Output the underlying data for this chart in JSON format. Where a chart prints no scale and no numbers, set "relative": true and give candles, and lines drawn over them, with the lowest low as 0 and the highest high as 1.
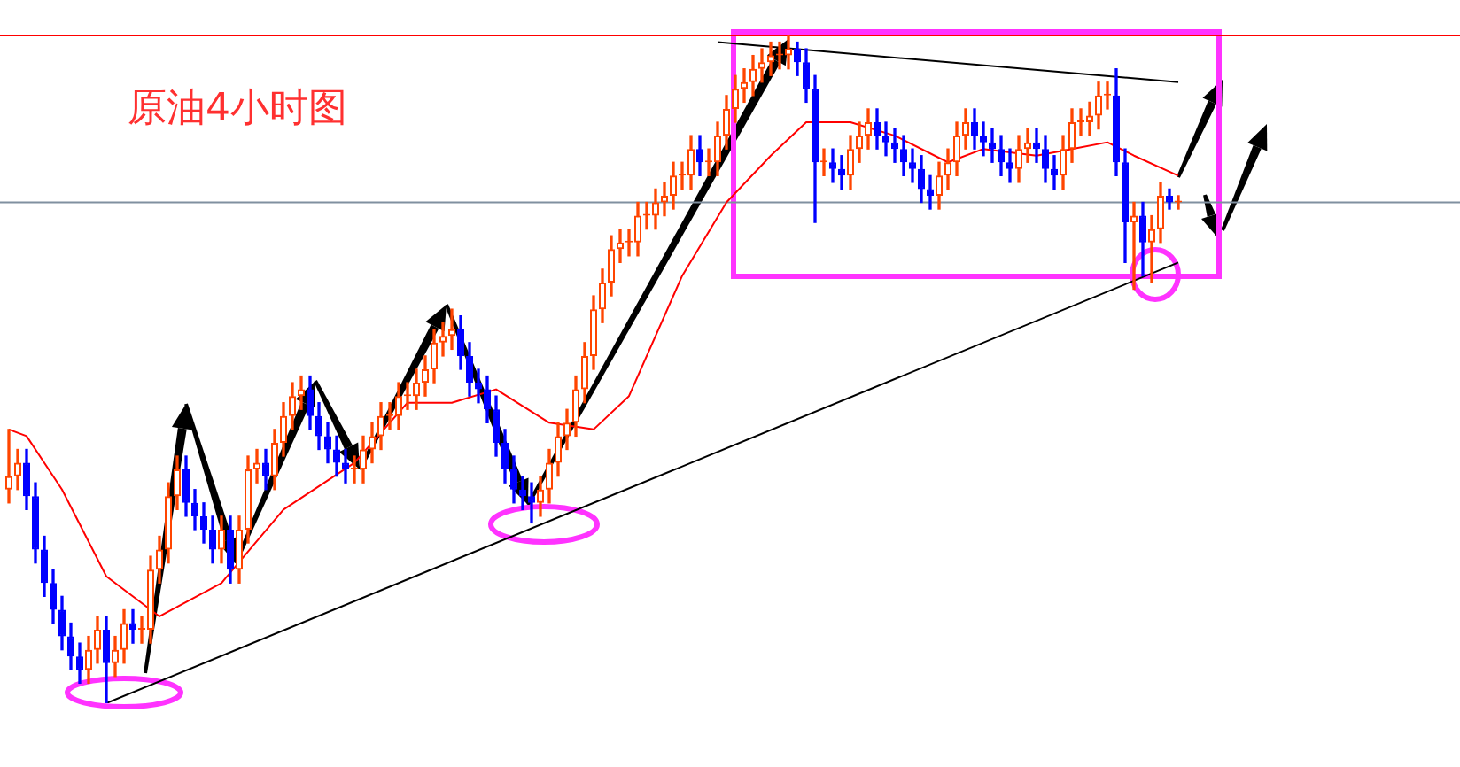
{
  "chart_data": {
    "type": "candlestick",
    "title": "原油4小时图",
    "relative": true,
    "legend": false,
    "categories": [
      null,
      null,
      null,
      null,
      null,
      null,
      null,
      null,
      null,
      null,
      null,
      null,
      null,
      null,
      null,
      null,
      null,
      null,
      null,
      null,
      null,
      null,
      null,
      null,
      null,
      null,
      null,
      null,
      null,
      null,
      null,
      null,
      null,
      null,
      null,
      null,
      null,
      null,
      null,
      null,
      null,
      null,
      null,
      null,
      null,
      null,
      null,
      null,
      null,
      null,
      null,
      null,
      null,
      null,
      null,
      null,
      null,
      null,
      null,
      null,
      null,
      null,
      null,
      null,
      null,
      null,
      null,
      null,
      null,
      null,
      null,
      null,
      null,
      null,
      null,
      null,
      null,
      null,
      null,
      null,
      null,
      null,
      null,
      null,
      null,
      null,
      null,
      null,
      null,
      null,
      null,
      null,
      null,
      null,
      null,
      null,
      null,
      null,
      null,
      null,
      null,
      null,
      null,
      null,
      null,
      null,
      null,
      null,
      null,
      null,
      null,
      null,
      null,
      null,
      null,
      null,
      null,
      null,
      null,
      null,
      null,
      null,
      null,
      null,
      null,
      null,
      null,
      null,
      null,
      null,
      null,
      null,
      null
    ],
    "ohlc": [
      [
        0.32,
        0.41,
        0.3,
        0.34
      ],
      [
        0.34,
        0.38,
        0.32,
        0.36
      ],
      [
        0.36,
        0.38,
        0.29,
        0.31
      ],
      [
        0.31,
        0.33,
        0.21,
        0.23
      ],
      [
        0.23,
        0.25,
        0.16,
        0.18
      ],
      [
        0.18,
        0.2,
        0.12,
        0.14
      ],
      [
        0.14,
        0.16,
        0.08,
        0.1
      ],
      [
        0.1,
        0.12,
        0.05,
        0.07
      ],
      [
        0.07,
        0.09,
        0.03,
        0.05
      ],
      [
        0.05,
        0.1,
        0.03,
        0.08
      ],
      [
        0.08,
        0.13,
        0.06,
        0.11
      ],
      [
        0.11,
        0.13,
        0.0,
        0.06
      ],
      [
        0.06,
        0.1,
        0.04,
        0.08
      ],
      [
        0.08,
        0.14,
        0.06,
        0.12
      ],
      [
        0.12,
        0.14,
        0.09,
        0.11
      ],
      [
        0.11,
        0.13,
        0.09,
        0.11
      ],
      [
        0.11,
        0.22,
        0.09,
        0.2
      ],
      [
        0.2,
        0.25,
        0.18,
        0.23
      ],
      [
        0.23,
        0.33,
        0.21,
        0.31
      ],
      [
        0.31,
        0.37,
        0.29,
        0.35
      ],
      [
        0.35,
        0.37,
        0.28,
        0.3
      ],
      [
        0.3,
        0.32,
        0.26,
        0.28
      ],
      [
        0.28,
        0.3,
        0.24,
        0.26
      ],
      [
        0.26,
        0.28,
        0.21,
        0.23
      ],
      [
        0.23,
        0.28,
        0.21,
        0.26
      ],
      [
        0.26,
        0.28,
        0.18,
        0.2
      ],
      [
        0.2,
        0.28,
        0.18,
        0.26
      ],
      [
        0.26,
        0.37,
        0.24,
        0.35
      ],
      [
        0.35,
        0.38,
        0.33,
        0.36
      ],
      [
        0.36,
        0.38,
        0.32,
        0.34
      ],
      [
        0.34,
        0.41,
        0.32,
        0.39
      ],
      [
        0.39,
        0.45,
        0.37,
        0.43
      ],
      [
        0.43,
        0.48,
        0.41,
        0.46
      ],
      [
        0.46,
        0.49,
        0.44,
        0.47
      ],
      [
        0.47,
        0.49,
        0.41,
        0.43
      ],
      [
        0.43,
        0.45,
        0.38,
        0.4
      ],
      [
        0.4,
        0.42,
        0.36,
        0.38
      ],
      [
        0.38,
        0.4,
        0.34,
        0.36
      ],
      [
        0.36,
        0.38,
        0.33,
        0.35
      ],
      [
        0.35,
        0.37,
        0.33,
        0.35
      ],
      [
        0.35,
        0.4,
        0.33,
        0.38
      ],
      [
        0.38,
        0.42,
        0.36,
        0.4
      ],
      [
        0.4,
        0.45,
        0.38,
        0.43
      ],
      [
        0.43,
        0.45,
        0.41,
        0.43
      ],
      [
        0.43,
        0.48,
        0.41,
        0.46
      ],
      [
        0.46,
        0.48,
        0.44,
        0.46
      ],
      [
        0.46,
        0.5,
        0.44,
        0.48
      ],
      [
        0.48,
        0.52,
        0.46,
        0.5
      ],
      [
        0.5,
        0.56,
        0.48,
        0.54
      ],
      [
        0.54,
        0.57,
        0.52,
        0.55
      ],
      [
        0.55,
        0.59,
        0.53,
        0.56
      ],
      [
        0.56,
        0.58,
        0.5,
        0.52
      ],
      [
        0.52,
        0.54,
        0.46,
        0.48
      ],
      [
        0.48,
        0.5,
        0.45,
        0.47
      ],
      [
        0.47,
        0.49,
        0.42,
        0.44
      ],
      [
        0.44,
        0.46,
        0.37,
        0.39
      ],
      [
        0.39,
        0.41,
        0.33,
        0.35
      ],
      [
        0.35,
        0.37,
        0.3,
        0.32
      ],
      [
        0.32,
        0.34,
        0.29,
        0.31
      ],
      [
        0.31,
        0.33,
        0.27,
        0.3
      ],
      [
        0.3,
        0.34,
        0.28,
        0.32
      ],
      [
        0.32,
        0.38,
        0.3,
        0.36
      ],
      [
        0.36,
        0.42,
        0.34,
        0.4
      ],
      [
        0.4,
        0.44,
        0.38,
        0.42
      ],
      [
        0.42,
        0.49,
        0.4,
        0.47
      ],
      [
        0.47,
        0.54,
        0.45,
        0.52
      ],
      [
        0.52,
        0.61,
        0.5,
        0.59
      ],
      [
        0.59,
        0.65,
        0.57,
        0.63
      ],
      [
        0.63,
        0.7,
        0.61,
        0.68
      ],
      [
        0.68,
        0.71,
        0.66,
        0.69
      ],
      [
        0.69,
        0.71,
        0.67,
        0.69
      ],
      [
        0.69,
        0.75,
        0.67,
        0.73
      ],
      [
        0.73,
        0.75,
        0.71,
        0.73
      ],
      [
        0.73,
        0.77,
        0.71,
        0.75
      ],
      [
        0.75,
        0.78,
        0.73,
        0.76
      ],
      [
        0.76,
        0.81,
        0.74,
        0.79
      ],
      [
        0.79,
        0.81,
        0.77,
        0.79
      ],
      [
        0.79,
        0.85,
        0.77,
        0.83
      ],
      [
        0.83,
        0.85,
        0.79,
        0.81
      ],
      [
        0.81,
        0.83,
        0.79,
        0.81
      ],
      [
        0.81,
        0.87,
        0.79,
        0.85
      ],
      [
        0.85,
        0.91,
        0.83,
        0.89
      ],
      [
        0.89,
        0.94,
        0.87,
        0.92
      ],
      [
        0.92,
        0.95,
        0.9,
        0.93
      ],
      [
        0.93,
        0.97,
        0.91,
        0.95
      ],
      [
        0.95,
        0.98,
        0.93,
        0.96
      ],
      [
        0.96,
        0.99,
        0.94,
        0.97
      ],
      [
        0.97,
        0.99,
        0.95,
        0.97
      ],
      [
        0.97,
        1.0,
        0.95,
        0.98
      ],
      [
        0.98,
        0.99,
        0.94,
        0.96
      ],
      [
        0.96,
        0.98,
        0.9,
        0.92
      ],
      [
        0.92,
        0.94,
        0.72,
        0.81
      ],
      [
        0.81,
        0.83,
        0.79,
        0.81
      ],
      [
        0.81,
        0.83,
        0.78,
        0.8
      ],
      [
        0.8,
        0.82,
        0.77,
        0.79
      ],
      [
        0.79,
        0.85,
        0.77,
        0.83
      ],
      [
        0.83,
        0.87,
        0.81,
        0.85
      ],
      [
        0.85,
        0.89,
        0.83,
        0.87
      ],
      [
        0.87,
        0.89,
        0.83,
        0.85
      ],
      [
        0.85,
        0.87,
        0.82,
        0.84
      ],
      [
        0.84,
        0.86,
        0.81,
        0.83
      ],
      [
        0.83,
        0.85,
        0.79,
        0.81
      ],
      [
        0.81,
        0.83,
        0.78,
        0.8
      ],
      [
        0.8,
        0.82,
        0.75,
        0.77
      ],
      [
        0.77,
        0.79,
        0.74,
        0.76
      ],
      [
        0.76,
        0.81,
        0.74,
        0.79
      ],
      [
        0.79,
        0.83,
        0.77,
        0.81
      ],
      [
        0.81,
        0.87,
        0.79,
        0.85
      ],
      [
        0.85,
        0.89,
        0.83,
        0.87
      ],
      [
        0.87,
        0.89,
        0.83,
        0.85
      ],
      [
        0.85,
        0.87,
        0.82,
        0.84
      ],
      [
        0.84,
        0.86,
        0.81,
        0.83
      ],
      [
        0.83,
        0.85,
        0.79,
        0.81
      ],
      [
        0.81,
        0.83,
        0.78,
        0.8
      ],
      [
        0.8,
        0.85,
        0.78,
        0.83
      ],
      [
        0.83,
        0.86,
        0.81,
        0.84
      ],
      [
        0.84,
        0.86,
        0.81,
        0.83
      ],
      [
        0.83,
        0.85,
        0.78,
        0.8
      ],
      [
        0.8,
        0.82,
        0.77,
        0.79
      ],
      [
        0.79,
        0.85,
        0.77,
        0.83
      ],
      [
        0.83,
        0.89,
        0.81,
        0.87
      ],
      [
        0.87,
        0.89,
        0.85,
        0.87
      ],
      [
        0.87,
        0.9,
        0.85,
        0.88
      ],
      [
        0.88,
        0.93,
        0.86,
        0.91
      ],
      [
        0.91,
        0.93,
        0.89,
        0.91
      ],
      [
        0.91,
        0.95,
        0.79,
        0.81
      ],
      [
        0.81,
        0.83,
        0.66,
        0.72
      ],
      [
        0.72,
        0.75,
        0.62,
        0.73
      ],
      [
        0.73,
        0.75,
        0.64,
        0.69
      ],
      [
        0.69,
        0.73,
        0.63,
        0.71
      ],
      [
        0.71,
        0.78,
        0.69,
        0.76
      ],
      [
        0.76,
        0.77,
        0.74,
        0.75
      ],
      [
        0.75,
        0.76,
        0.74,
        0.75
      ]
    ],
    "series": [
      {
        "type": "line",
        "color": "#ff0000",
        "values": [
          0.41,
          null,
          0.4,
          null,
          null,
          null,
          0.32,
          null,
          null,
          null,
          null,
          0.19,
          null,
          null,
          null,
          null,
          null,
          0.13,
          null,
          null,
          null,
          null,
          null,
          null,
          0.18,
          null,
          null,
          null,
          null,
          null,
          null,
          0.29,
          null,
          null,
          null,
          null,
          null,
          null,
          null,
          0.36,
          null,
          null,
          null,
          null,
          null,
          0.45,
          null,
          null,
          null,
          null,
          0.45,
          null,
          null,
          null,
          null,
          0.47,
          null,
          null,
          null,
          null,
          null,
          0.42,
          null,
          null,
          null,
          null,
          0.41,
          null,
          null,
          null,
          0.46,
          null,
          null,
          null,
          null,
          null,
          0.64,
          null,
          null,
          null,
          null,
          0.75,
          null,
          null,
          null,
          null,
          0.82,
          null,
          null,
          null,
          0.87,
          null,
          null,
          null,
          null,
          0.87,
          null,
          null,
          null,
          null,
          0.85,
          null,
          null,
          null,
          null,
          null,
          0.81,
          null,
          null,
          null,
          0.83,
          null,
          null,
          null,
          null,
          null,
          0.82,
          null,
          null,
          null,
          0.83,
          null,
          null,
          null,
          0.84,
          null,
          null,
          0.82,
          null,
          null,
          null,
          null,
          0.79
        ]
      },
      {
        "type": "line",
        "color": "#000000",
        "values": [
          null,
          null,
          null,
          null,
          null,
          null,
          null,
          null,
          null,
          null,
          null,
          0.0,
          null,
          null,
          null,
          null,
          null,
          null,
          null,
          null,
          null,
          null,
          null,
          null,
          null,
          null,
          null,
          null,
          null,
          null,
          null,
          null,
          null,
          null,
          null,
          null,
          null,
          null,
          null,
          null,
          null,
          null,
          null,
          null,
          null,
          null,
          null,
          null,
          null,
          null,
          null,
          null,
          null,
          null,
          null,
          null,
          null,
          null,
          null,
          null,
          null,
          null,
          null,
          null,
          null,
          null,
          null,
          null,
          null,
          null,
          null,
          null,
          null,
          null,
          null,
          null,
          null,
          null,
          null,
          null,
          null,
          null,
          null,
          null,
          null,
          null,
          null,
          null,
          null,
          null,
          null,
          null,
          null,
          null,
          null,
          null,
          null,
          null,
          null,
          null,
          null,
          null,
          null,
          null,
          null,
          null,
          null,
          null,
          null,
          null,
          null,
          null,
          null,
          null,
          null,
          null,
          null,
          null,
          null,
          null,
          null,
          null,
          null,
          null,
          null,
          null,
          null,
          null,
          null,
          null,
          null,
          null,
          0.66
        ]
      },
      {
        "type": "line",
        "color": "#000000",
        "values": [
          null,
          null,
          null,
          null,
          null,
          null,
          null,
          null,
          null,
          null,
          null,
          null,
          null,
          null,
          null,
          null,
          null,
          null,
          null,
          null,
          null,
          null,
          null,
          null,
          null,
          null,
          null,
          null,
          null,
          null,
          null,
          null,
          null,
          null,
          null,
          null,
          null,
          null,
          null,
          null,
          null,
          null,
          null,
          null,
          null,
          null,
          null,
          null,
          null,
          null,
          null,
          null,
          null,
          null,
          null,
          null,
          null,
          null,
          null,
          null,
          null,
          null,
          null,
          null,
          null,
          null,
          null,
          null,
          null,
          null,
          null,
          null,
          null,
          null,
          null,
          null,
          null,
          null,
          null,
          null,
          0.99,
          null,
          null,
          null,
          null,
          null,
          null,
          null,
          null,
          null,
          null,
          null,
          null,
          null,
          null,
          null,
          null,
          null,
          null,
          null,
          null,
          null,
          null,
          null,
          null,
          null,
          null,
          null,
          null,
          null,
          null,
          null,
          null,
          null,
          null,
          null,
          null,
          null,
          null,
          null,
          null,
          null,
          null,
          null,
          null,
          null,
          null,
          null,
          null,
          null,
          null,
          null,
          0.93
        ]
      }
    ],
    "ref_lines": [
      {
        "axis": "y",
        "value": 1.0,
        "color": "#ff0000"
      },
      {
        "axis": "y",
        "value": 0.75,
        "color": "#8090a0"
      }
    ]
  }
}
